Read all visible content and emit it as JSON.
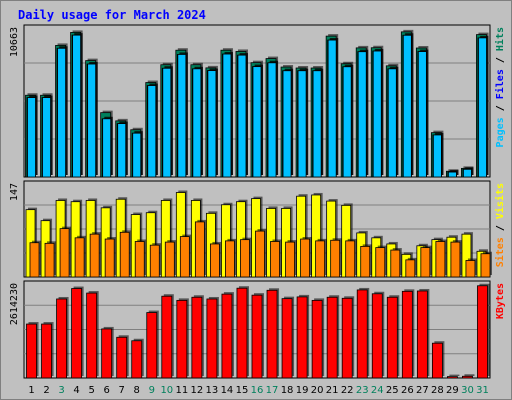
{
  "chart_data": {
    "title": "Daily usage for March 2024",
    "categories": [
      "1",
      "2",
      "3",
      "4",
      "5",
      "6",
      "7",
      "8",
      "9",
      "10",
      "11",
      "12",
      "13",
      "14",
      "15",
      "16",
      "17",
      "18",
      "19",
      "20",
      "21",
      "22",
      "23",
      "24",
      "25",
      "26",
      "27",
      "28",
      "29",
      "30",
      "31"
    ],
    "weekend_days": [
      "3",
      "9",
      "10",
      "16",
      "17",
      "23",
      "24",
      "30",
      "31"
    ],
    "colors": {
      "hits": "#00805c",
      "files": "#0000ff",
      "pages": "#00c0ff",
      "visits": "#ffff00",
      "sites": "#ff8000",
      "kbytes": "#ff0000",
      "weekend_label": "#00805c",
      "weekday_label": "#000000",
      "title": "#0000ff"
    },
    "panels": [
      {
        "type": "bar",
        "ylabel_parts": [
          "Pages",
          "Files",
          "Hits"
        ],
        "ymax_label": "10663",
        "ylim": [
          0,
          10663
        ],
        "series": [
          {
            "name": "Hits",
            "values": [
              5970,
              5970,
              9610,
              10560,
              8500,
              4700,
              4100,
              3450,
              6900,
              8200,
              9260,
              8200,
              7970,
              9260,
              9170,
              8350,
              8650,
              8030,
              7960,
              7960,
              10290,
              8270,
              9430,
              9440,
              8120,
              10600,
              9420,
              3240,
              420,
              630,
              10400
            ]
          },
          {
            "name": "Files",
            "values": [
              5800,
              5800,
              9400,
              10360,
              8250,
              4250,
              3900,
              3200,
              6680,
              7940,
              8950,
              7900,
              7770,
              8980,
              8900,
              8060,
              8340,
              7760,
              7760,
              7760,
              10000,
              8050,
              9150,
              9200,
              7900,
              10350,
              9160,
              3070,
              360,
              560,
              10160
            ]
          },
          {
            "name": "Pages",
            "values": [
              5800,
              5800,
              9400,
              10360,
              8250,
              4250,
              3900,
              3200,
              6680,
              7940,
              8950,
              7900,
              7770,
              8980,
              8900,
              8060,
              8340,
              7760,
              7760,
              7760,
              10000,
              8050,
              9150,
              9200,
              7900,
              10350,
              9160,
              3070,
              360,
              560,
              10160
            ]
          }
        ]
      },
      {
        "type": "bar",
        "ylabel_parts": [
          "Sites",
          "Visits"
        ],
        "ymax_label": "147",
        "ylim": [
          0,
          147
        ],
        "series": [
          {
            "name": "Visits",
            "values": [
              110,
              92,
              125,
              123,
              125,
              113,
              127,
              102,
              105,
              125,
              138,
              125,
              104,
              118,
              123,
              128,
              112,
              112,
              132,
              134,
              124,
              117,
              72,
              64,
              54,
              37,
              51,
              61,
              65,
              70,
              42
            ]
          },
          {
            "name": "Sites",
            "values": [
              56,
              55,
              79,
              64,
              70,
              62,
              73,
              58,
              52,
              57,
              66,
              90,
              54,
              59,
              61,
              75,
              58,
              57,
              62,
              59,
              60,
              59,
              50,
              48,
              44,
              28,
              48,
              58,
              57,
              27,
              38
            ]
          }
        ]
      },
      {
        "type": "bar",
        "ylabel_parts": [
          "KBytes"
        ],
        "ymax_label": "2614230",
        "ylim": [
          0,
          2614230
        ],
        "series": [
          {
            "name": "KBytes",
            "values": [
              1550000,
              1550000,
              2270000,
              2570000,
              2440000,
              1410000,
              1170000,
              1070000,
              1880000,
              2350000,
              2230000,
              2320000,
              2270000,
              2410000,
              2580000,
              2380000,
              2520000,
              2280000,
              2330000,
              2230000,
              2320000,
              2290000,
              2530000,
              2420000,
              2320000,
              2490000,
              2500000,
              1000000,
              40000,
              50000,
              2650000
            ]
          }
        ]
      }
    ]
  }
}
